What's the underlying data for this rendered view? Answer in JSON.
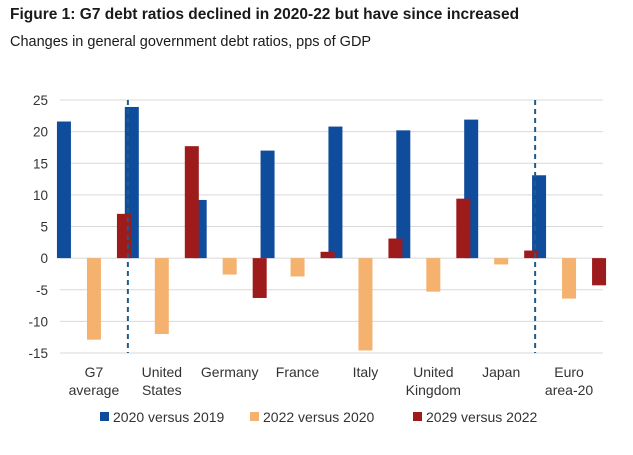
{
  "figure": {
    "title": "Figure 1: G7 debt ratios declined in 2020-22 but have since increased",
    "subtitle": "Changes in general government debt ratios, pps of GDP"
  },
  "chart_data": {
    "type": "bar",
    "title": "Figure 1: G7 debt ratios declined in 2020-22 but have since increased",
    "subtitle": "Changes in general government debt ratios, pps of GDP",
    "categories": [
      [
        "G7",
        "average"
      ],
      [
        "United",
        "States"
      ],
      [
        "Germany"
      ],
      [
        "France"
      ],
      [
        "Italy"
      ],
      [
        "United",
        "Kingdom"
      ],
      [
        "Japan"
      ],
      [
        "Euro",
        "area-20"
      ]
    ],
    "series": [
      {
        "name": "2020 versus 2019",
        "color": "#0f4c9c",
        "values": [
          21.6,
          23.9,
          9.2,
          17.0,
          20.8,
          20.2,
          21.9,
          13.1
        ]
      },
      {
        "name": "2022 versus 2020",
        "color": "#f5b26e",
        "values": [
          -12.9,
          -12.0,
          -2.6,
          -2.9,
          -14.6,
          -5.3,
          -1.0,
          -6.4
        ]
      },
      {
        "name": "2029 versus 2022",
        "color": "#9e1b1b",
        "values": [
          7.0,
          17.7,
          -6.3,
          1.0,
          3.1,
          9.4,
          1.2,
          -4.3
        ]
      }
    ],
    "ylim": [
      -15,
      25
    ],
    "yticks": [
      25,
      20,
      15,
      10,
      5,
      0,
      -5,
      -10,
      -15
    ],
    "grid": true,
    "legend": "bottom",
    "separators_after_categories": [
      0,
      6
    ]
  }
}
